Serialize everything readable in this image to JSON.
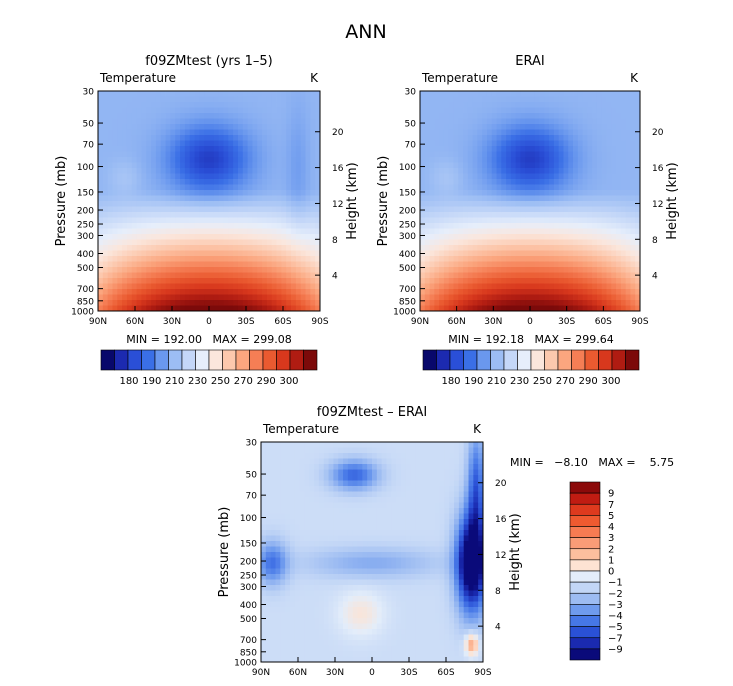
{
  "figure_title": "ANN",
  "chart_data": [
    {
      "type": "heatmap",
      "title": "f09ZMtest (yrs 1–5)",
      "left_label": "Temperature",
      "units": "K",
      "ylabel": "Pressure (mb)",
      "ylabel_right": "Height (km)",
      "x_ticks": [
        "90N",
        "60N",
        "30N",
        "0",
        "30S",
        "60S",
        "90S"
      ],
      "y_ticks": [
        "30",
        "50",
        "70",
        "100",
        "150",
        "200",
        "250",
        "300",
        "400",
        "500",
        "700",
        "850",
        "1000"
      ],
      "y_ticks_right": [
        "20",
        "16",
        "12",
        "8",
        "4"
      ],
      "min_max": "MIN = 192.00   MAX = 299.08",
      "colorbar": {
        "labels": [
          "180",
          "190",
          "210",
          "230",
          "250",
          "270",
          "290",
          "300"
        ],
        "colors": [
          "#08086b",
          "#1c2ab0",
          "#2a4fd7",
          "#3a6fe6",
          "#6a98ee",
          "#9cbdf4",
          "#c4d7f8",
          "#e6eefb",
          "#fbe6dc",
          "#fcc8ad",
          "#fba67f",
          "#f57e55",
          "#ea5a30",
          "#d8381d",
          "#b01c12",
          "#7c0a0a"
        ]
      },
      "field": "temperature",
      "variant": "model"
    },
    {
      "type": "heatmap",
      "title": "ERAI",
      "left_label": "Temperature",
      "units": "K",
      "ylabel": "Pressure (mb)",
      "ylabel_right": "Height (km)",
      "x_ticks": [
        "90N",
        "60N",
        "30N",
        "0",
        "30S",
        "60S",
        "90S"
      ],
      "y_ticks": [
        "30",
        "50",
        "70",
        "100",
        "150",
        "200",
        "250",
        "300",
        "400",
        "500",
        "700",
        "850",
        "1000"
      ],
      "y_ticks_right": [
        "20",
        "16",
        "12",
        "8",
        "4"
      ],
      "min_max": "MIN = 192.18   MAX = 299.64",
      "colorbar": {
        "labels": [
          "180",
          "190",
          "210",
          "230",
          "250",
          "270",
          "290",
          "300"
        ],
        "colors": [
          "#08086b",
          "#1c2ab0",
          "#2a4fd7",
          "#3a6fe6",
          "#6a98ee",
          "#9cbdf4",
          "#c4d7f8",
          "#e6eefb",
          "#fbe6dc",
          "#fcc8ad",
          "#fba67f",
          "#f57e55",
          "#ea5a30",
          "#d8381d",
          "#b01c12",
          "#7c0a0a"
        ]
      },
      "field": "temperature",
      "variant": "obs"
    },
    {
      "type": "heatmap",
      "title": "f09ZMtest – ERAI",
      "left_label": "Temperature",
      "units": "K",
      "ylabel": "Pressure (mb)",
      "ylabel_right": "Height (km)",
      "x_ticks": [
        "90N",
        "60N",
        "30N",
        "0",
        "30S",
        "60S",
        "90S"
      ],
      "y_ticks": [
        "30",
        "50",
        "70",
        "100",
        "150",
        "200",
        "250",
        "300",
        "400",
        "500",
        "700",
        "850",
        "1000"
      ],
      "y_ticks_right": [
        "20",
        "16",
        "12",
        "8",
        "4"
      ],
      "min_max": "MIN =   −8.10   MAX =    5.75",
      "colorbar": {
        "labels": [
          "9",
          "7",
          "5",
          "4",
          "3",
          "2",
          "1",
          "0",
          "−1",
          "−2",
          "−3",
          "−4",
          "−5",
          "−7",
          "−9"
        ],
        "colors": [
          "#8b0a0a",
          "#c01c12",
          "#de3a1e",
          "#ef5a30",
          "#f77b52",
          "#fa9c77",
          "#fcbf9e",
          "#fde3d3",
          "#e3edfa",
          "#c2d6f6",
          "#9dbcf2",
          "#6f9bee",
          "#4677e7",
          "#2a51d6",
          "#1a2ab0",
          "#0a0a7a"
        ]
      },
      "field": "difference",
      "variant": "diff"
    }
  ]
}
